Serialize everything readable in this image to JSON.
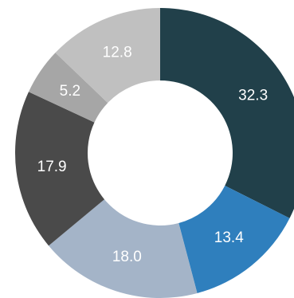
{
  "chart_data": {
    "type": "pie",
    "style": "donut",
    "title": "",
    "start": "top",
    "direction": "clockwise",
    "slices": [
      {
        "label": "32.3",
        "value": 32.3,
        "color": "#21404a",
        "label_color": "#ffffff"
      },
      {
        "label": "13.4",
        "value": 13.4,
        "color": "#2f7fbd",
        "label_color": "#ffffff"
      },
      {
        "label": "18.0",
        "value": 18.0,
        "color": "#a4b4c8",
        "label_color": "#ffffff"
      },
      {
        "label": "17.9",
        "value": 17.9,
        "color": "#4a4a4a",
        "label_color": "#ffffff"
      },
      {
        "label": "5.2",
        "value": 5.2,
        "color": "#a6a6a6",
        "label_color": "#ffffff"
      },
      {
        "label": "12.8",
        "value": 12.8,
        "color": "#c0c0c0",
        "label_color": "#ffffff"
      }
    ]
  }
}
